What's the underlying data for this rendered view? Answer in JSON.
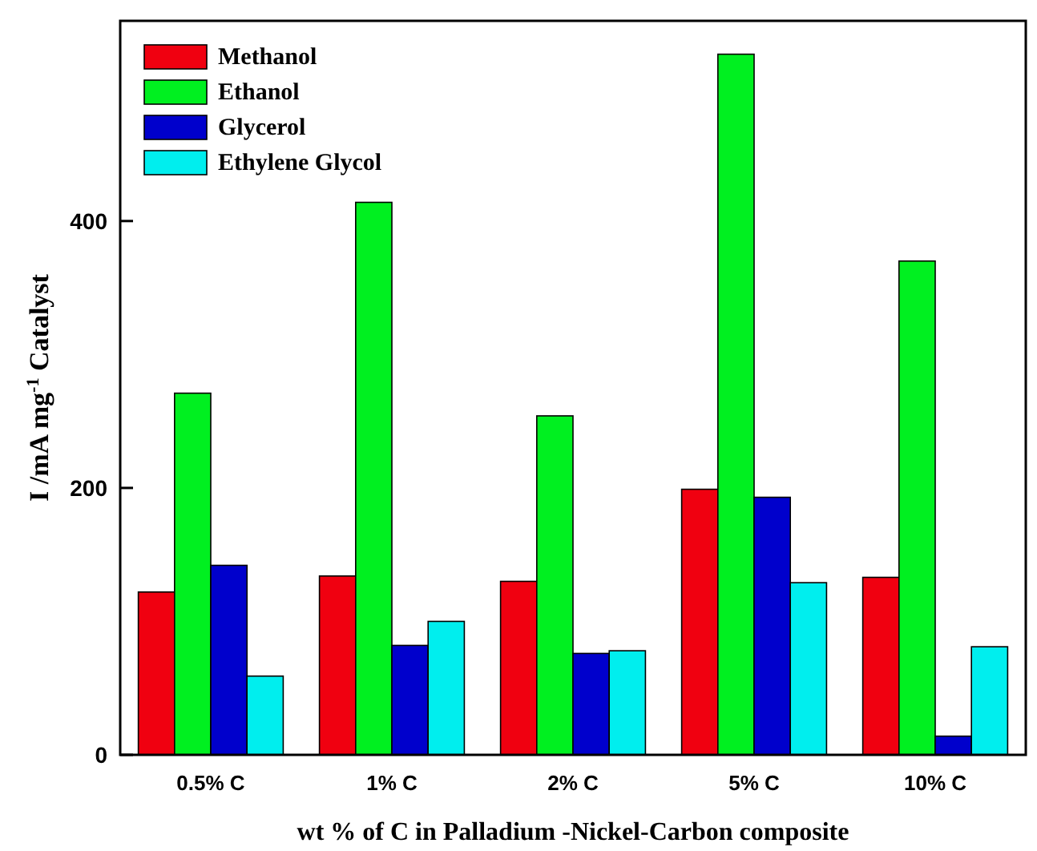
{
  "chart_data": {
    "type": "bar",
    "xlabel": "wt % of C in Palladium -Nickel-Carbon composite",
    "ylabel": "I /mA mg$^{-1}$ Catalyst",
    "categories": [
      "0.5% C",
      "1% C",
      "2% C",
      "5% C",
      "10% C"
    ],
    "series": [
      {
        "name": "Methanol",
        "color": "#f00010",
        "values": [
          122,
          134,
          130,
          199,
          133
        ]
      },
      {
        "name": "Ethanol",
        "color": "#00f020",
        "values": [
          271,
          414,
          254,
          525,
          370
        ]
      },
      {
        "name": "Glycerol",
        "color": "#0000cc",
        "values": [
          142,
          82,
          76,
          193,
          14
        ]
      },
      {
        "name": "Ethylene Glycol",
        "color": "#00eeee",
        "values": [
          59,
          100,
          78,
          129,
          81
        ]
      }
    ],
    "ylim": [
      0,
      550
    ],
    "yticks": [
      0,
      200,
      400
    ],
    "legend": "top left",
    "grid": false
  }
}
